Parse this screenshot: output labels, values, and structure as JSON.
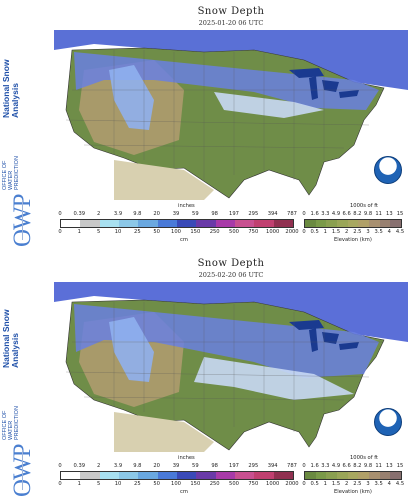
{
  "brand": {
    "title": "National Snow\nAnalysis",
    "office": "OFFICE OF\nWATER\nPREDICTION",
    "logo": "OWP"
  },
  "panels": [
    {
      "title": "Snow Depth",
      "date": "2025-01-20 06 UTC",
      "noaa_icon": "noaa-logo-icon"
    },
    {
      "title": "Snow Depth",
      "date": "2025-02-20 06 UTC",
      "noaa_icon": "noaa-logo-icon"
    }
  ],
  "legend": {
    "depth_unit_top": "inches",
    "depth_unit_bottom": "cm",
    "depth_inches": [
      "0",
      "0.39",
      "2",
      "3.9",
      "9.8",
      "20",
      "39",
      "59",
      "98",
      "197",
      "295",
      "394",
      "787"
    ],
    "depth_cm": [
      "0",
      "1",
      "5",
      "10",
      "25",
      "50",
      "100",
      "150",
      "250",
      "500",
      "750",
      "1000",
      "2000"
    ],
    "elev_unit_top": "1000s of ft",
    "elev_unit_bottom": "Elevation (km)",
    "elev_ft": [
      "0",
      "1.6",
      "3.3",
      "4.9",
      "6.6",
      "8.2",
      "9.8",
      "11",
      "13",
      "15"
    ],
    "elev_km": [
      "0",
      "0.5",
      "1",
      "1.5",
      "2",
      "2.5",
      "3",
      "3.5",
      "4",
      "4.5"
    ],
    "depth_colors": [
      "#ffffff",
      "#c8c8c8",
      "#a8e0f0",
      "#8cc8e8",
      "#6aa8e0",
      "#4a7ad8",
      "#3a4ab8",
      "#6a3aa8",
      "#a83aa8",
      "#c85090",
      "#c04070",
      "#903050"
    ],
    "elev_colors": [
      "#6a8a40",
      "#7a9a48",
      "#8aa050",
      "#9aa658",
      "#a8a860",
      "#b0a068",
      "#a89070",
      "#988070",
      "#887070"
    ]
  }
}
